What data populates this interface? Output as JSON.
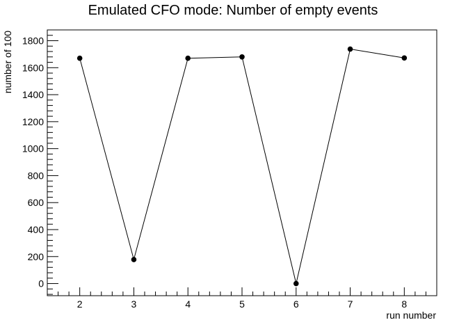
{
  "chart_data": {
    "type": "line",
    "title": "Emulated CFO mode: Number of  empty events",
    "xlabel": "run number",
    "ylabel": "number of 100",
    "xlim": [
      1.4,
      8.6
    ],
    "ylim": [
      -90,
      1880
    ],
    "x_ticks": [
      2,
      3,
      4,
      5,
      6,
      7,
      8
    ],
    "y_ticks": [
      0,
      200,
      400,
      600,
      800,
      1000,
      1200,
      1400,
      1600,
      1800
    ],
    "grid": false,
    "series": [
      {
        "x": [
          2,
          3,
          4,
          5,
          6,
          7,
          8
        ],
        "y": [
          1670,
          178,
          1670,
          1680,
          0,
          1738,
          1672
        ],
        "color": "#000000",
        "marker": "circle"
      }
    ]
  }
}
